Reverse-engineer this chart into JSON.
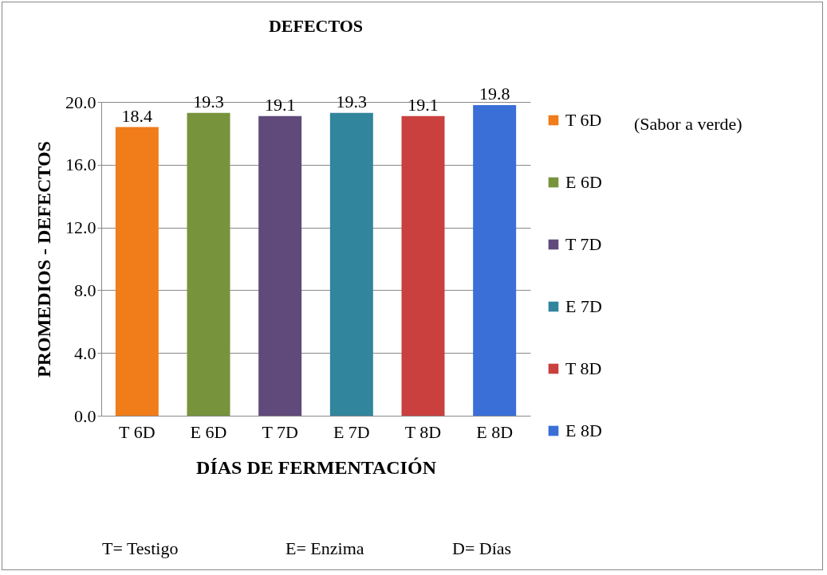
{
  "chart_data": {
    "type": "bar",
    "title": "DEFECTOS",
    "xlabel": "DÍAS DE FERMENTACIÓN",
    "ylabel": "PROMEDIOS - DEFECTOS",
    "categories": [
      "T 6D",
      "E 6D",
      "T 7D",
      "E 7D",
      "T 8D",
      "E 8D"
    ],
    "series": [
      {
        "name": "T 6D",
        "color": "#f07c1a",
        "values": [
          18.4,
          null,
          null,
          null,
          null,
          null
        ]
      },
      {
        "name": "E 6D",
        "color": "#77933c",
        "values": [
          null,
          19.3,
          null,
          null,
          null,
          null
        ]
      },
      {
        "name": "T 7D",
        "color": "#604a7b",
        "values": [
          null,
          null,
          19.1,
          null,
          null,
          null
        ]
      },
      {
        "name": "E 7D",
        "color": "#31859c",
        "values": [
          null,
          null,
          null,
          19.3,
          null,
          null
        ]
      },
      {
        "name": "T 8D",
        "color": "#c9403e",
        "values": [
          null,
          null,
          null,
          null,
          19.1,
          null
        ]
      },
      {
        "name": "E 8D",
        "color": "#3a6fd8",
        "values": [
          null,
          null,
          null,
          null,
          null,
          19.8
        ]
      }
    ],
    "ylim": [
      0,
      20
    ],
    "yticks": [
      {
        "value": 0,
        "label": "0.0"
      },
      {
        "value": 4,
        "label": "4.0"
      },
      {
        "value": 8,
        "label": "8.0"
      },
      {
        "value": 12,
        "label": "12.0"
      },
      {
        "value": 16,
        "label": "16.0"
      },
      {
        "value": 20,
        "label": "20.0"
      }
    ],
    "grid": "y",
    "legend": "right",
    "data_labels": true,
    "annotations": [
      "(Sabor a verde)",
      "T= Testigo",
      "E= Enzima",
      "D= Días"
    ]
  }
}
